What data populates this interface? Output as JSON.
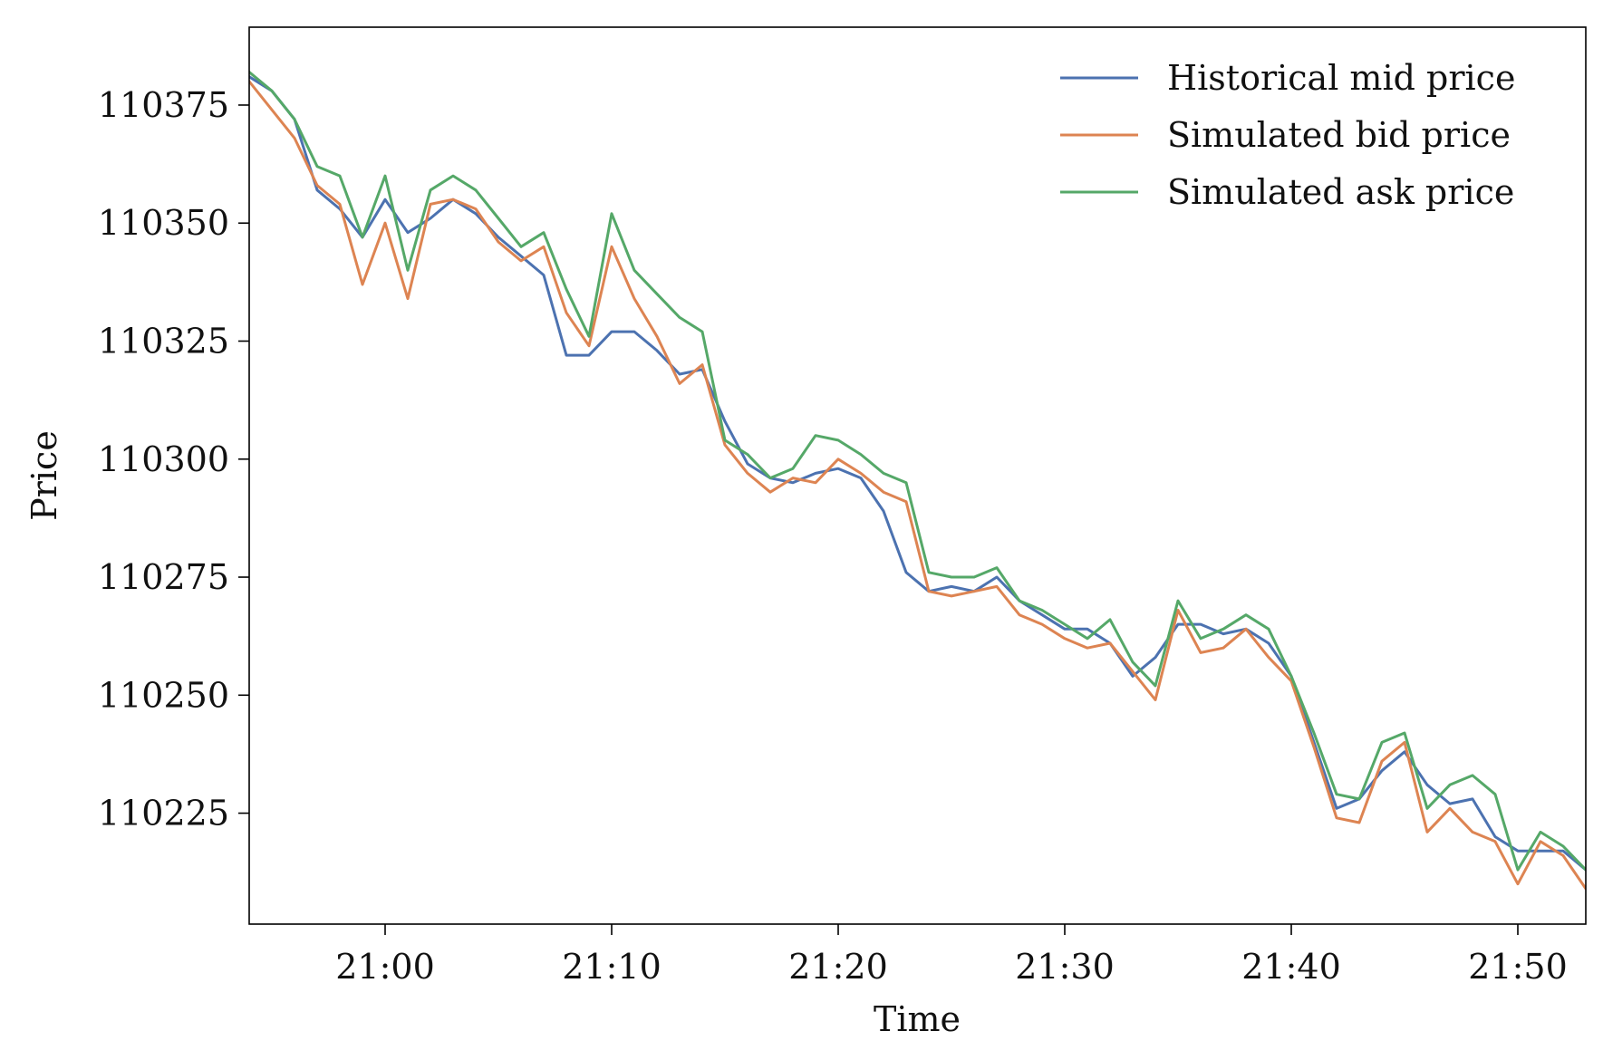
{
  "chart_data": {
    "type": "line",
    "title": "",
    "xlabel": "Time",
    "ylabel": "Price",
    "x_format": "HH:MM",
    "xlim": [
      "20:54",
      "21:53"
    ],
    "ylim": [
      110201.5,
      110391.5
    ],
    "xticks": [
      "21:00",
      "21:10",
      "21:20",
      "21:30",
      "21:40",
      "21:50"
    ],
    "yticks": [
      110225,
      110250,
      110275,
      110300,
      110325,
      110350,
      110375
    ],
    "grid": false,
    "legend_position": "top-right",
    "x": [
      "20:54",
      "20:55",
      "20:56",
      "20:57",
      "20:58",
      "20:59",
      "21:00",
      "21:01",
      "21:02",
      "21:03",
      "21:04",
      "21:05",
      "21:06",
      "21:07",
      "21:08",
      "21:09",
      "21:10",
      "21:11",
      "21:12",
      "21:13",
      "21:14",
      "21:15",
      "21:16",
      "21:17",
      "21:18",
      "21:19",
      "21:20",
      "21:21",
      "21:22",
      "21:23",
      "21:24",
      "21:25",
      "21:26",
      "21:27",
      "21:28",
      "21:29",
      "21:30",
      "21:31",
      "21:32",
      "21:33",
      "21:34",
      "21:35",
      "21:36",
      "21:37",
      "21:38",
      "21:39",
      "21:40",
      "21:41",
      "21:42",
      "21:43",
      "21:44",
      "21:45",
      "21:46",
      "21:47",
      "21:48",
      "21:49",
      "21:50",
      "21:51",
      "21:52",
      "21:53"
    ],
    "series": [
      {
        "name": "Historical mid price",
        "color": "#4c72b0",
        "values": [
          110381,
          110378,
          110372,
          110357,
          110353,
          110347,
          110355,
          110348,
          110351,
          110355,
          110352,
          110347,
          110343,
          110339,
          110322,
          110322,
          110327,
          110327,
          110323,
          110318,
          110319,
          110308,
          110299,
          110296,
          110295,
          110297,
          110298,
          110296,
          110289,
          110276,
          110272,
          110273,
          110272,
          110275,
          110270,
          110267,
          110264,
          110264,
          110261,
          110254,
          110258,
          110265,
          110265,
          110263,
          110264,
          110261,
          110254,
          110240,
          110226,
          110228,
          110234,
          110238,
          110231,
          110227,
          110228,
          110220,
          110217,
          110217,
          110217,
          110213
        ]
      },
      {
        "name": "Simulated bid price",
        "color": "#dd8452",
        "values": [
          110380,
          110374,
          110368,
          110358,
          110354,
          110337,
          110350,
          110334,
          110354,
          110355,
          110353,
          110346,
          110342,
          110345,
          110331,
          110324,
          110345,
          110334,
          110326,
          110316,
          110320,
          110303,
          110297,
          110293,
          110296,
          110295,
          110300,
          110297,
          110293,
          110291,
          110272,
          110271,
          110272,
          110273,
          110267,
          110265,
          110262,
          110260,
          110261,
          110255,
          110249,
          110268,
          110259,
          110260,
          110264,
          110258,
          110253,
          110239,
          110224,
          110223,
          110236,
          110240,
          110221,
          110226,
          110221,
          110219,
          110210,
          110219,
          110216,
          110209
        ]
      },
      {
        "name": "Simulated ask price",
        "color": "#55a868",
        "values": [
          110382,
          110378,
          110372,
          110362,
          110360,
          110347,
          110360,
          110340,
          110357,
          110360,
          110357,
          110351,
          110345,
          110348,
          110336,
          110326,
          110352,
          110340,
          110335,
          110330,
          110327,
          110304,
          110301,
          110296,
          110298,
          110305,
          110304,
          110301,
          110297,
          110295,
          110276,
          110275,
          110275,
          110277,
          110270,
          110268,
          110265,
          110262,
          110266,
          110257,
          110252,
          110270,
          110262,
          110264,
          110267,
          110264,
          110254,
          110242,
          110229,
          110228,
          110240,
          110242,
          110226,
          110231,
          110233,
          110229,
          110213,
          110221,
          110218,
          110213
        ]
      }
    ]
  }
}
